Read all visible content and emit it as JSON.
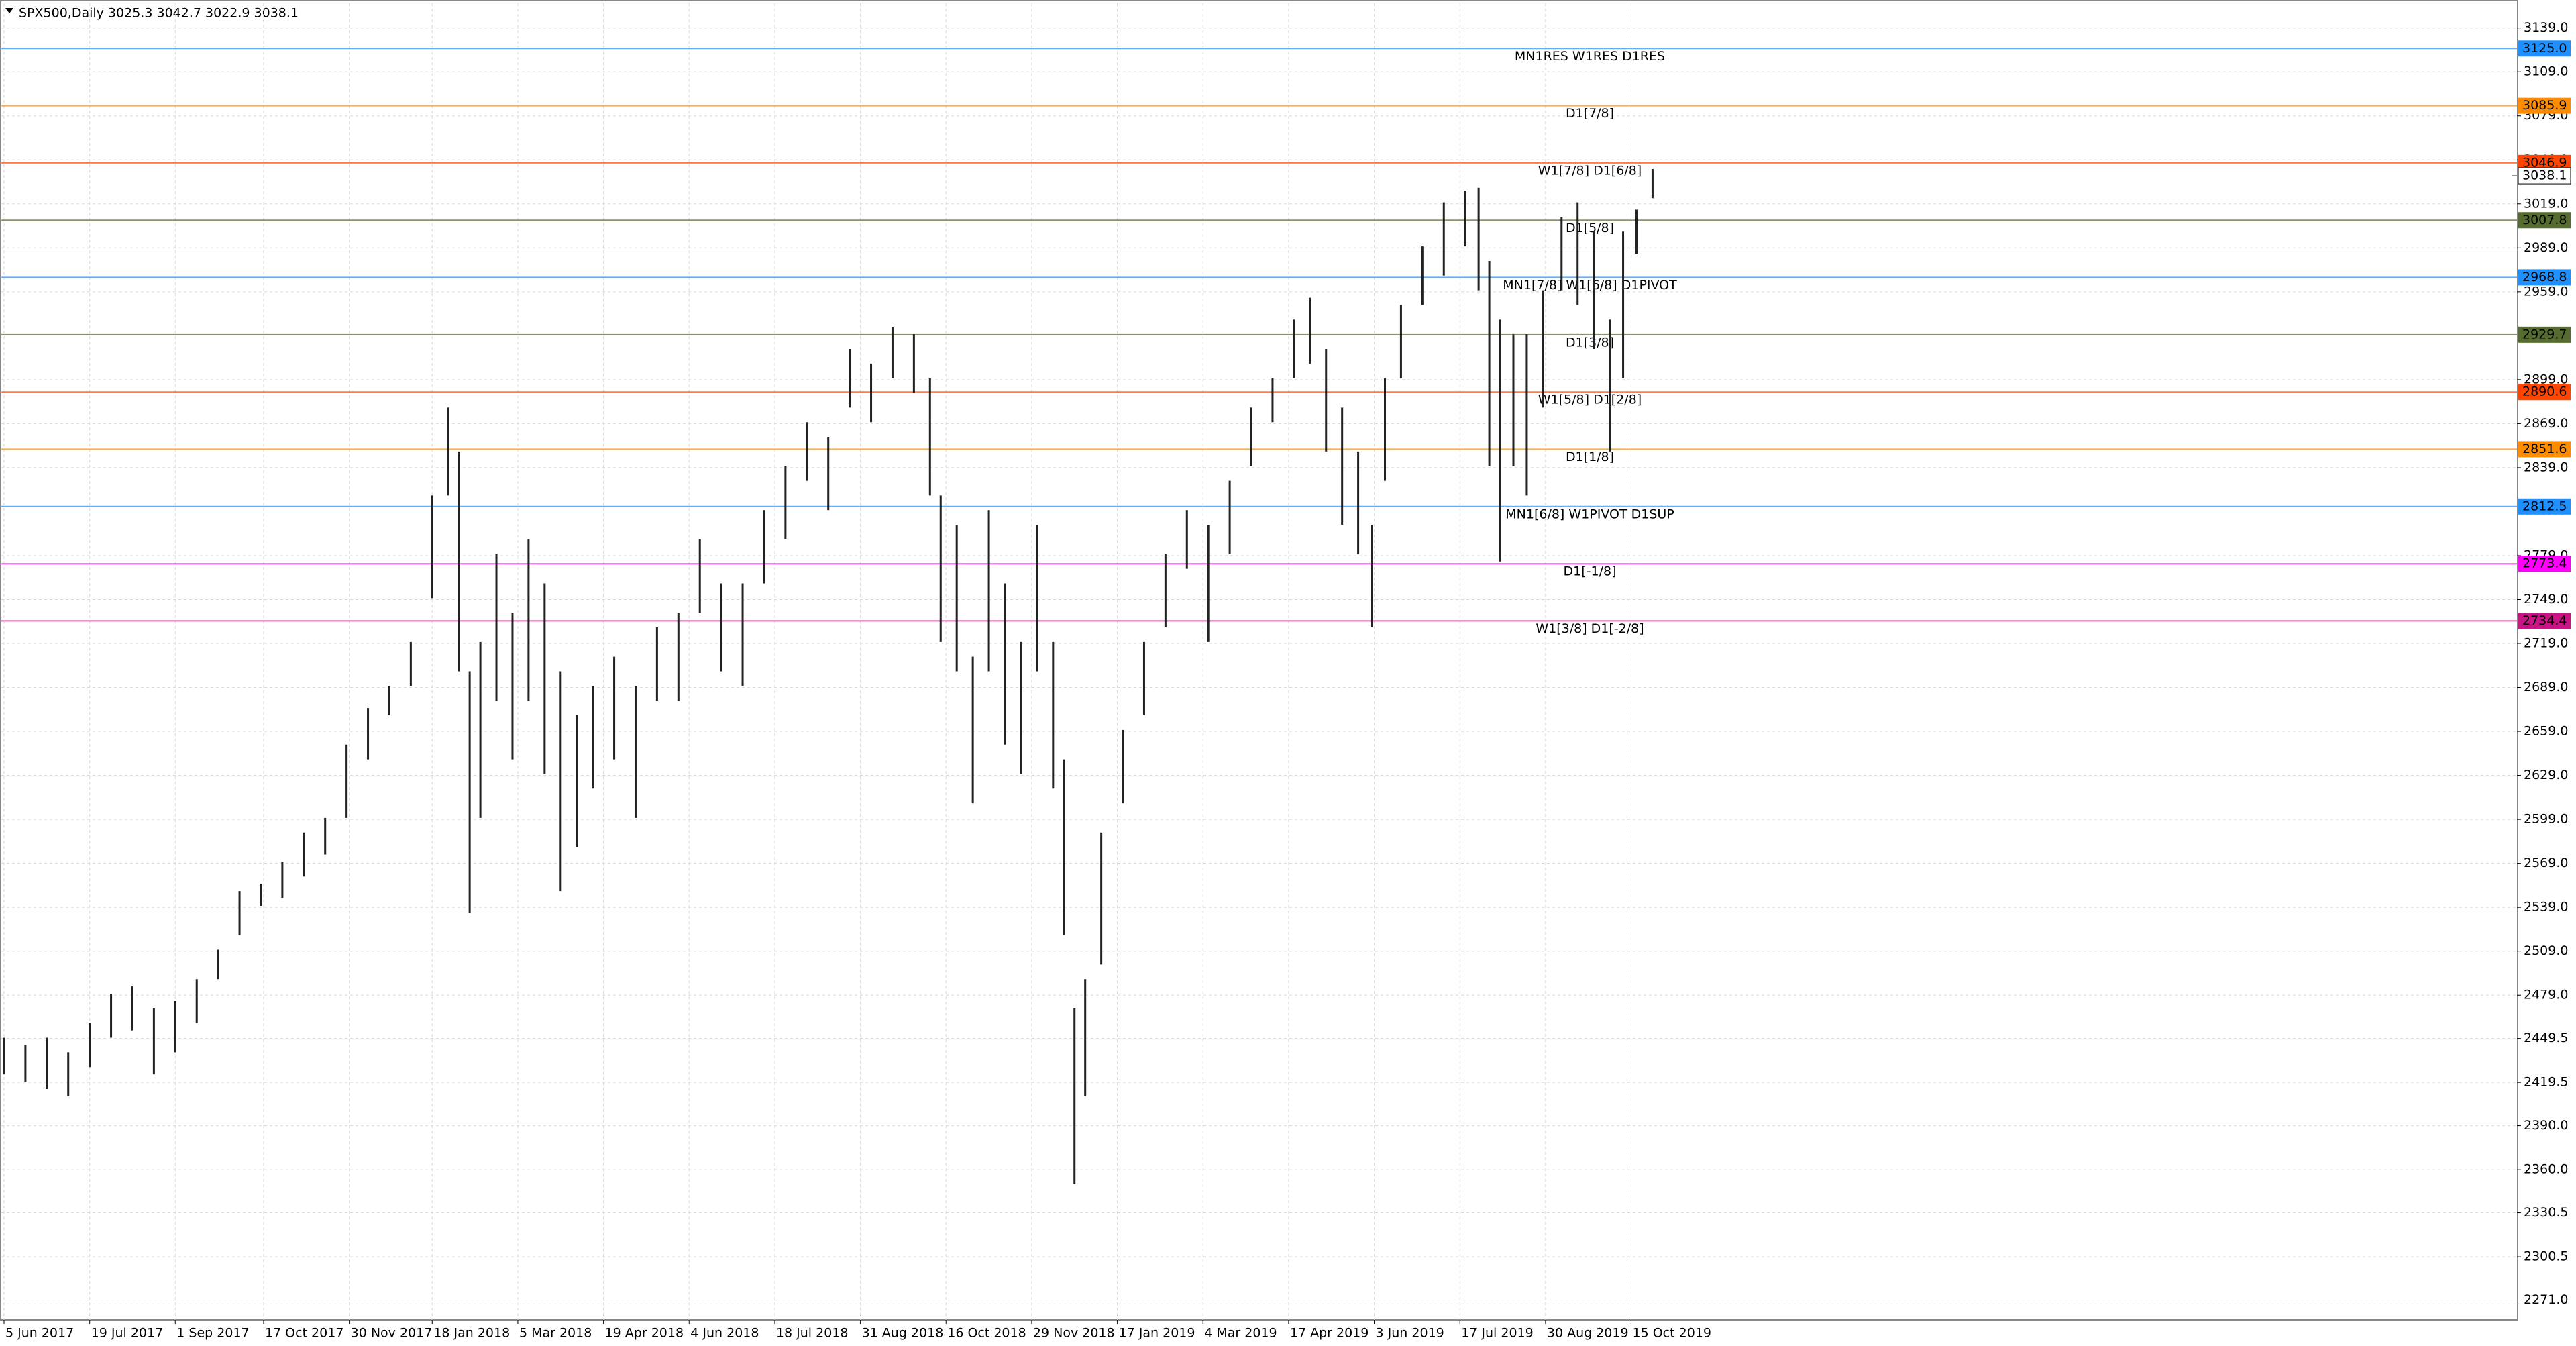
{
  "chart_data": {
    "type": "ohlc-bars",
    "title": "SPX500,Daily  3025.3 3042.7 3022.9 3038.1",
    "color": "#222222",
    "xlim": [
      -1,
      939
    ],
    "xticks": [
      {
        "value": 0,
        "label": "5 Jun 2017"
      },
      {
        "value": 32,
        "label": "19 Jul 2017"
      },
      {
        "value": 64,
        "label": "1 Sep 2017"
      },
      {
        "value": 97,
        "label": "17 Oct 2017"
      },
      {
        "value": 129,
        "label": "30 Nov 2017"
      },
      {
        "value": 160,
        "label": "18 Jan 2018"
      },
      {
        "value": 192,
        "label": "5 Mar 2018"
      },
      {
        "value": 224,
        "label": "19 Apr 2018"
      },
      {
        "value": 256,
        "label": "4 Jun 2018"
      },
      {
        "value": 288,
        "label": "18 Jul 2018"
      },
      {
        "value": 320,
        "label": "31 Aug 2018"
      },
      {
        "value": 352,
        "label": "16 Oct 2018"
      },
      {
        "value": 384,
        "label": "29 Nov 2018"
      },
      {
        "value": 416,
        "label": "17 Jan 2019"
      },
      {
        "value": 448,
        "label": "4 Mar 2019"
      },
      {
        "value": 480,
        "label": "17 Apr 2019"
      },
      {
        "value": 512,
        "label": "3 Jun 2019"
      },
      {
        "value": 544,
        "label": "17 Jul 2019"
      },
      {
        "value": 576,
        "label": "30 Aug 2019"
      },
      {
        "value": 608,
        "label": "15 Oct 2019"
      }
    ],
    "ylim": [
      2257.5,
      3155.8
    ],
    "yticks": [
      {
        "value": 3139,
        "label": "3139.0"
      },
      {
        "value": 3109,
        "label": "3109.0"
      },
      {
        "value": 3079,
        "label": "3079.0"
      },
      {
        "value": 3049,
        "label": "3049.0"
      },
      {
        "value": 3019,
        "label": "3019.0"
      },
      {
        "value": 2989,
        "label": "2989.0"
      },
      {
        "value": 2959,
        "label": "2959.0"
      },
      {
        "value": 2899,
        "label": "2899.0"
      },
      {
        "value": 2869,
        "label": "2869.0"
      },
      {
        "value": 2839,
        "label": "2839.0"
      },
      {
        "value": 2779,
        "label": "2779.0"
      },
      {
        "value": 2749,
        "label": "2749.0"
      },
      {
        "value": 2719,
        "label": "2719.0"
      },
      {
        "value": 2689,
        "label": "2689.0"
      },
      {
        "value": 2659,
        "label": "2659.0"
      },
      {
        "value": 2629,
        "label": "2629.0"
      },
      {
        "value": 2599,
        "label": "2599.0"
      },
      {
        "value": 2569,
        "label": "2569.0"
      },
      {
        "value": 2539,
        "label": "2539.0"
      },
      {
        "value": 2509,
        "label": "2509.0"
      },
      {
        "value": 2479,
        "label": "2479.0"
      },
      {
        "value": 2449.5,
        "label": "2449.5"
      },
      {
        "value": 2419.5,
        "label": "2419.5"
      },
      {
        "value": 2390,
        "label": "2390.0"
      },
      {
        "value": 2360,
        "label": "2360.0"
      },
      {
        "value": 2330.5,
        "label": "2330.5"
      },
      {
        "value": 2300.5,
        "label": "2300.5"
      },
      {
        "value": 2271,
        "label": "2271.0"
      }
    ],
    "grid": true,
    "x": [
      0,
      8,
      16,
      24,
      32,
      40,
      48,
      56,
      64,
      72,
      80,
      88,
      96,
      104,
      112,
      120,
      128,
      136,
      144,
      152,
      160,
      166,
      170,
      174,
      178,
      184,
      190,
      196,
      202,
      208,
      214,
      220,
      228,
      236,
      244,
      252,
      260,
      268,
      276,
      284,
      292,
      300,
      308,
      316,
      324,
      332,
      340,
      346,
      350,
      356,
      362,
      368,
      374,
      380,
      386,
      392,
      396,
      400,
      404,
      410,
      418,
      426,
      434,
      442,
      450,
      458,
      466,
      474,
      482,
      488,
      494,
      500,
      506,
      511,
      516,
      522,
      530,
      538,
      546,
      551,
      555,
      559,
      564,
      569,
      575,
      582,
      588,
      594,
      600,
      605,
      610,
      616
    ],
    "high": [
      2450,
      2445,
      2450,
      2440,
      2460,
      2480,
      2485,
      2470,
      2475,
      2490,
      2510,
      2550,
      2555,
      2570,
      2590,
      2600,
      2650,
      2675,
      2690,
      2720,
      2820,
      2880,
      2850,
      2700,
      2720,
      2780,
      2740,
      2790,
      2760,
      2700,
      2670,
      2690,
      2710,
      2690,
      2730,
      2740,
      2790,
      2760,
      2760,
      2810,
      2840,
      2870,
      2860,
      2920,
      2910,
      2935,
      2930,
      2900,
      2820,
      2800,
      2710,
      2810,
      2760,
      2720,
      2800,
      2720,
      2640,
      2470,
      2490,
      2590,
      2660,
      2720,
      2780,
      2810,
      2800,
      2830,
      2880,
      2900,
      2940,
      2955,
      2920,
      2880,
      2850,
      2800,
      2900,
      2950,
      2990,
      3020,
      3028,
      3030,
      2980,
      2940,
      2930,
      2930,
      2960,
      3010,
      3020,
      3000,
      2940,
      3000,
      3015,
      3042.7
    ],
    "low": [
      2425,
      2420,
      2415,
      2410,
      2430,
      2450,
      2455,
      2425,
      2440,
      2460,
      2490,
      2520,
      2540,
      2545,
      2560,
      2575,
      2600,
      2640,
      2670,
      2690,
      2750,
      2820,
      2700,
      2535,
      2600,
      2680,
      2640,
      2680,
      2630,
      2550,
      2580,
      2620,
      2640,
      2600,
      2680,
      2680,
      2740,
      2700,
      2690,
      2760,
      2790,
      2830,
      2810,
      2880,
      2870,
      2900,
      2890,
      2820,
      2720,
      2700,
      2610,
      2700,
      2650,
      2630,
      2700,
      2620,
      2520,
      2350,
      2410,
      2500,
      2610,
      2670,
      2730,
      2770,
      2720,
      2780,
      2840,
      2870,
      2900,
      2910,
      2850,
      2800,
      2780,
      2730,
      2830,
      2900,
      2950,
      2970,
      2990,
      2960,
      2840,
      2775,
      2840,
      2820,
      2880,
      2960,
      2950,
      2920,
      2850,
      2900,
      2985,
      3022.9
    ],
    "levels": {
      "names": [
        "MN1RES W1RES D1RES",
        "D1[7/8]",
        "W1[7/8] D1[6/8]",
        "D1[5/8]",
        "MN1[7/8] W1[6/8] D1PIVOT",
        "D1[3/8]",
        "W1[5/8] D1[2/8]",
        "D1[1/8]",
        "MN1[6/8] W1PIVOT D1SUP",
        "D1[-1/8]",
        "W1[3/8] D1[-2/8]"
      ],
      "values": [
        3125.0,
        3085.9,
        3046.9,
        3007.8,
        2968.8,
        2929.7,
        2890.6,
        2851.6,
        2812.5,
        2773.4,
        2734.4
      ],
      "value_labels": [
        "3125.0",
        "3085.9",
        "3046.9",
        "3007.8",
        "2968.8",
        "2929.7",
        "2890.6",
        "2851.6",
        "2812.5",
        "2773.4",
        "2734.4"
      ],
      "colors": [
        "#1e90ff",
        "#ff8c00",
        "#ff4500",
        "#556b2f",
        "#1e90ff",
        "#556b2f",
        "#ff4500",
        "#ff8c00",
        "#1e90ff",
        "#ff00ff",
        "#c71585"
      ]
    },
    "last": 3038.1,
    "last_label": "3038.1"
  }
}
